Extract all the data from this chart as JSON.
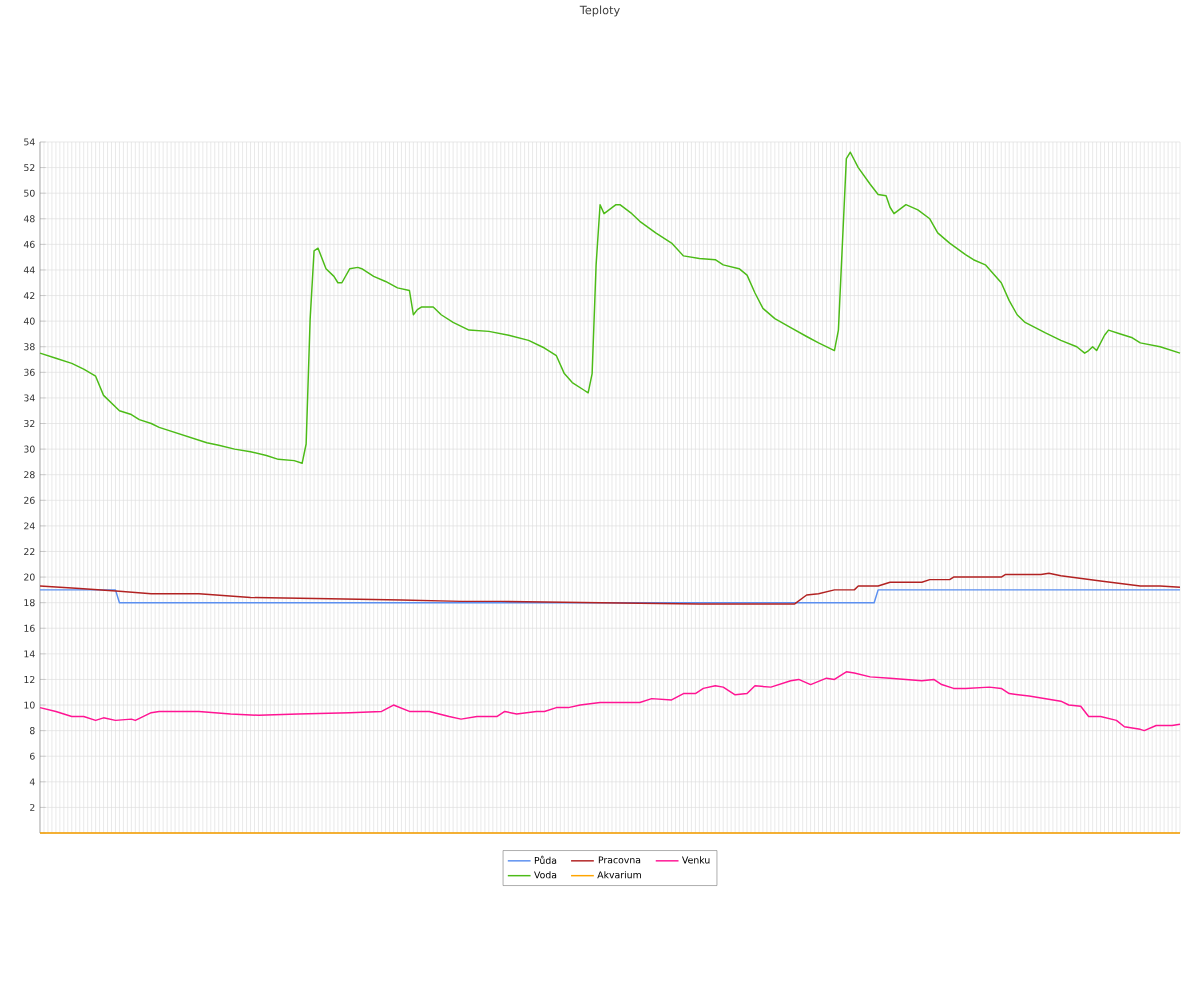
{
  "chart_data": {
    "type": "line",
    "title": "Teploty",
    "categories": [
      null,
      null,
      null,
      null,
      null,
      null,
      null,
      null,
      null,
      null,
      null,
      null,
      null,
      null,
      null,
      null,
      null,
      null,
      null,
      null,
      null,
      null,
      null,
      null,
      null,
      null,
      null,
      null,
      null,
      null,
      null,
      null,
      null,
      null,
      null,
      null,
      null,
      null,
      null,
      null,
      null,
      null,
      null,
      null,
      null,
      null,
      null,
      null,
      null,
      null,
      null,
      null,
      null,
      null,
      null,
      null,
      null,
      null,
      null,
      null,
      null,
      null,
      null,
      null,
      null,
      null,
      null,
      null,
      null,
      null,
      null,
      null,
      null,
      null,
      null,
      null,
      null,
      null,
      null,
      null,
      null,
      null,
      null,
      null,
      null,
      null,
      null,
      null,
      null,
      null,
      null,
      null,
      null,
      null,
      null,
      null,
      null,
      null,
      null,
      null,
      null,
      null,
      null,
      null,
      null,
      null,
      null,
      null,
      null,
      null,
      null,
      null,
      null,
      null,
      null,
      null,
      null,
      null,
      null,
      null,
      null,
      null,
      null,
      null,
      null,
      null,
      null,
      null,
      null,
      null,
      null,
      null,
      null,
      null,
      null,
      null,
      null,
      null,
      null,
      null,
      null,
      null,
      null,
      null,
      null,
      null,
      null,
      null,
      null,
      null,
      null,
      null,
      null,
      null,
      null,
      null,
      null,
      null,
      null,
      null,
      null,
      null,
      null,
      null,
      null,
      null,
      null,
      null,
      null,
      null,
      null,
      null,
      null,
      null,
      null,
      null,
      null,
      null,
      null,
      null,
      null,
      null,
      null,
      null,
      null,
      null,
      null,
      null,
      null,
      null,
      null,
      null,
      null,
      null,
      null,
      null,
      null,
      null,
      null,
      null,
      null,
      null,
      null,
      null,
      null,
      null,
      null,
      null,
      null,
      null,
      null,
      null,
      null,
      null,
      null,
      null,
      null,
      null,
      null,
      null,
      null,
      null,
      null,
      null,
      null,
      null,
      null,
      null,
      null,
      null,
      null,
      null,
      null,
      null,
      null,
      null,
      null,
      null,
      null,
      null,
      null,
      null,
      null,
      null,
      null,
      null,
      null,
      null,
      null,
      null,
      null,
      null,
      null,
      null,
      null,
      null,
      null,
      null,
      null,
      null,
      null,
      null,
      null,
      null,
      null,
      null,
      null,
      null,
      null,
      null,
      null,
      null,
      null,
      null,
      null,
      null,
      null,
      null,
      null,
      null,
      null,
      null,
      null,
      null,
      null,
      null,
      null,
      null
    ],
    "ylim": [
      0,
      54
    ],
    "yticks": [
      {
        "value": 0,
        "label": null
      },
      2,
      4,
      6,
      8,
      10,
      12,
      14,
      16,
      18,
      20,
      22,
      24,
      26,
      28,
      30,
      32,
      34,
      36,
      38,
      40,
      42,
      44,
      46,
      48,
      50,
      52,
      54
    ],
    "grid": true,
    "legend": "bottom",
    "marker": "none",
    "line_style": "solid",
    "series": [
      {
        "name": "Půda",
        "color": "#5b8ff0",
        "values": [
          19,
          null,
          null,
          null,
          null,
          null,
          null,
          null,
          null,
          null,
          null,
          null,
          null,
          null,
          null,
          null,
          null,
          null,
          null,
          19,
          18,
          null,
          null,
          null,
          null,
          null,
          null,
          null,
          null,
          null,
          null,
          null,
          null,
          null,
          null,
          null,
          null,
          null,
          null,
          null,
          null,
          null,
          null,
          null,
          null,
          null,
          null,
          null,
          null,
          null,
          null,
          null,
          null,
          null,
          null,
          null,
          null,
          null,
          null,
          null,
          null,
          null,
          null,
          null,
          null,
          null,
          null,
          null,
          null,
          null,
          null,
          null,
          null,
          null,
          null,
          null,
          null,
          null,
          null,
          null,
          null,
          null,
          null,
          null,
          null,
          null,
          null,
          null,
          null,
          null,
          null,
          null,
          null,
          null,
          null,
          null,
          null,
          null,
          null,
          null,
          null,
          null,
          null,
          null,
          null,
          null,
          null,
          null,
          null,
          null,
          null,
          null,
          null,
          null,
          null,
          null,
          null,
          null,
          null,
          null,
          null,
          null,
          null,
          null,
          null,
          null,
          null,
          null,
          null,
          null,
          null,
          null,
          null,
          null,
          null,
          null,
          null,
          null,
          null,
          null,
          null,
          null,
          null,
          null,
          null,
          null,
          null,
          null,
          null,
          null,
          null,
          null,
          null,
          null,
          null,
          null,
          null,
          null,
          null,
          null,
          null,
          null,
          null,
          null,
          null,
          null,
          null,
          null,
          null,
          null,
          null,
          null,
          null,
          null,
          null,
          null,
          null,
          null,
          null,
          null,
          null,
          null,
          null,
          null,
          null,
          null,
          null,
          null,
          null,
          null,
          null,
          null,
          null,
          null,
          null,
          null,
          null,
          null,
          null,
          null,
          null,
          null,
          null,
          null,
          null,
          null,
          null,
          null,
          null,
          null,
          18,
          19,
          null,
          null,
          null,
          null,
          null,
          null,
          null,
          null,
          null,
          null,
          null,
          null,
          null,
          null,
          null,
          null,
          null,
          null,
          null,
          null,
          null,
          null,
          null,
          null,
          null,
          null,
          null,
          null,
          null,
          null,
          null,
          null,
          null,
          null,
          null,
          null,
          null,
          null,
          null,
          null,
          null,
          null,
          null,
          null,
          null,
          null,
          null,
          null,
          null,
          null,
          null,
          null,
          null,
          null,
          null,
          null,
          null,
          null,
          null,
          null,
          null,
          null,
          null,
          null,
          null,
          null,
          null,
          null,
          null,
          null,
          null,
          null,
          null,
          null,
          null,
          19
        ]
      },
      {
        "name": "Pracovna",
        "color": "#b22222",
        "values": [
          19.3,
          null,
          null,
          null,
          null,
          19.2,
          null,
          null,
          null,
          null,
          19.1,
          null,
          null,
          null,
          null,
          null,
          null,
          null,
          null,
          null,
          18.9,
          null,
          null,
          null,
          null,
          null,
          null,
          null,
          18.7,
          null,
          null,
          null,
          null,
          null,
          null,
          null,
          null,
          null,
          null,
          null,
          18.7,
          null,
          null,
          null,
          null,
          null,
          null,
          null,
          null,
          null,
          null,
          null,
          null,
          18.4,
          null,
          null,
          null,
          null,
          null,
          null,
          null,
          null,
          null,
          null,
          null,
          null,
          null,
          null,
          null,
          null,
          null,
          null,
          null,
          18.3,
          null,
          null,
          null,
          null,
          null,
          null,
          null,
          null,
          null,
          null,
          null,
          null,
          null,
          null,
          null,
          null,
          null,
          18.2,
          null,
          null,
          null,
          null,
          null,
          null,
          null,
          null,
          null,
          null,
          null,
          null,
          null,
          null,
          18.1,
          null,
          null,
          null,
          null,
          null,
          null,
          null,
          null,
          null,
          18.1,
          null,
          null,
          null,
          null,
          null,
          null,
          null,
          null,
          null,
          null,
          null,
          null,
          null,
          null,
          null,
          null,
          null,
          null,
          null,
          null,
          null,
          null,
          null,
          null,
          18.0,
          null,
          null,
          null,
          null,
          null,
          null,
          null,
          null,
          null,
          null,
          null,
          null,
          null,
          null,
          null,
          null,
          null,
          null,
          null,
          null,
          null,
          null,
          null,
          null,
          17.9,
          null,
          null,
          null,
          null,
          null,
          null,
          null,
          null,
          null,
          null,
          null,
          null,
          null,
          null,
          null,
          null,
          null,
          null,
          null,
          null,
          null,
          null,
          null,
          17.9,
          null,
          null,
          18.6,
          null,
          null,
          18.7,
          null,
          null,
          null,
          19.0,
          null,
          null,
          null,
          null,
          19.0,
          19.3,
          null,
          null,
          null,
          null,
          19.3,
          null,
          null,
          19.6,
          null,
          null,
          null,
          null,
          null,
          null,
          null,
          19.6,
          null,
          19.8,
          null,
          null,
          null,
          null,
          19.8,
          20.0,
          null,
          null,
          null,
          null,
          null,
          null,
          20.0,
          null,
          null,
          null,
          null,
          20.0,
          20.2,
          null,
          null,
          null,
          null,
          null,
          null,
          null,
          null,
          20.2,
          null,
          20.3,
          null,
          null,
          20.1,
          null,
          null,
          null,
          null,
          19.9,
          null,
          null,
          null,
          null,
          19.7,
          null,
          null,
          null,
          null,
          19.5,
          null,
          null,
          null,
          null,
          19.3,
          null,
          null,
          null,
          null,
          19.3,
          null,
          null,
          null,
          null,
          19.2
        ]
      },
      {
        "name": "Venku",
        "color": "#ff1493",
        "values": [
          9.8,
          null,
          null,
          null,
          9.5,
          null,
          null,
          null,
          9.1,
          null,
          null,
          9.1,
          null,
          null,
          8.8,
          null,
          9.0,
          null,
          null,
          8.8,
          null,
          null,
          null,
          8.9,
          8.8,
          null,
          null,
          null,
          9.4,
          null,
          9.5,
          null,
          null,
          null,
          null,
          null,
          null,
          null,
          null,
          null,
          9.5,
          null,
          null,
          null,
          null,
          null,
          null,
          null,
          9.3,
          null,
          null,
          null,
          null,
          null,
          null,
          9.2,
          null,
          null,
          null,
          null,
          null,
          null,
          null,
          null,
          null,
          9.3,
          null,
          null,
          null,
          null,
          null,
          null,
          null,
          null,
          null,
          null,
          null,
          null,
          9.4,
          null,
          null,
          null,
          null,
          null,
          null,
          null,
          9.5,
          null,
          null,
          10.0,
          null,
          null,
          null,
          9.5,
          null,
          null,
          null,
          null,
          9.5,
          null,
          null,
          null,
          null,
          9.1,
          null,
          null,
          8.9,
          null,
          null,
          null,
          9.1,
          null,
          null,
          null,
          null,
          9.1,
          null,
          9.5,
          null,
          null,
          9.3,
          null,
          null,
          null,
          null,
          9.5,
          null,
          9.5,
          null,
          null,
          9.8,
          null,
          null,
          9.8,
          null,
          null,
          10.0,
          null,
          null,
          null,
          null,
          10.2,
          null,
          null,
          null,
          null,
          null,
          null,
          null,
          null,
          null,
          10.2,
          null,
          null,
          10.5,
          null,
          null,
          null,
          null,
          10.4,
          null,
          null,
          10.9,
          null,
          null,
          10.9,
          null,
          11.3,
          null,
          null,
          11.5,
          null,
          11.4,
          null,
          null,
          10.8,
          null,
          null,
          10.9,
          null,
          11.5,
          null,
          null,
          null,
          11.4,
          null,
          null,
          null,
          null,
          11.9,
          null,
          12.0,
          null,
          null,
          11.6,
          null,
          null,
          null,
          12.1,
          null,
          12.0,
          null,
          null,
          12.6,
          null,
          12.5,
          null,
          null,
          null,
          12.2,
          null,
          null,
          null,
          null,
          12.1,
          null,
          null,
          null,
          12.0,
          null,
          null,
          null,
          11.9,
          null,
          null,
          12.0,
          null,
          11.6,
          null,
          null,
          11.3,
          null,
          null,
          11.3,
          null,
          null,
          null,
          null,
          null,
          11.4,
          null,
          null,
          11.3,
          null,
          10.9,
          null,
          null,
          null,
          null,
          10.7,
          null,
          null,
          null,
          null,
          null,
          null,
          null,
          10.3,
          null,
          10.0,
          null,
          null,
          9.9,
          null,
          9.1,
          null,
          null,
          9.1,
          null,
          null,
          null,
          8.8,
          null,
          8.3,
          null,
          null,
          null,
          8.1,
          8.0,
          null,
          null,
          8.4,
          null,
          null,
          null,
          8.4,
          null,
          8.5
        ]
      },
      {
        "name": "Voda",
        "color": "#4cbb17",
        "values": [
          37.5,
          null,
          null,
          null,
          37.1,
          null,
          null,
          null,
          36.7,
          null,
          null,
          36.25,
          null,
          null,
          35.7,
          null,
          34.2,
          null,
          33.6,
          null,
          33.0,
          null,
          null,
          32.7,
          null,
          32.3,
          null,
          null,
          32.0,
          null,
          31.7,
          null,
          null,
          null,
          31.3,
          null,
          null,
          null,
          30.9,
          null,
          null,
          null,
          30.5,
          null,
          null,
          30.3,
          null,
          null,
          null,
          30.0,
          null,
          null,
          null,
          29.8,
          null,
          null,
          null,
          29.5,
          null,
          null,
          29.2,
          null,
          null,
          null,
          29.1,
          null,
          28.9,
          30.4,
          40.1,
          45.5,
          45.7,
          null,
          44.1,
          null,
          43.5,
          43.0,
          43.0,
          null,
          44.1,
          null,
          44.2,
          44.1,
          null,
          null,
          43.5,
          null,
          null,
          43.1,
          null,
          null,
          42.6,
          null,
          null,
          42.4,
          40.5,
          40.9,
          41.1,
          null,
          null,
          41.1,
          null,
          40.5,
          null,
          null,
          39.9,
          null,
          null,
          null,
          39.3,
          null,
          null,
          null,
          null,
          39.2,
          null,
          null,
          null,
          null,
          38.9,
          null,
          null,
          null,
          null,
          38.5,
          null,
          null,
          null,
          37.9,
          null,
          null,
          37.3,
          null,
          35.9,
          null,
          35.2,
          null,
          null,
          34.6,
          34.4,
          35.9,
          44.4,
          49.1,
          48.4,
          null,
          null,
          49.1,
          49.1,
          null,
          null,
          48.4,
          null,
          47.8,
          null,
          null,
          null,
          46.9,
          null,
          null,
          null,
          46.1,
          null,
          null,
          45.1,
          null,
          null,
          null,
          44.9,
          null,
          null,
          null,
          44.8,
          null,
          44.4,
          null,
          null,
          null,
          44.1,
          null,
          43.6,
          null,
          42.2,
          null,
          41.0,
          null,
          null,
          40.2,
          null,
          null,
          null,
          39.5,
          null,
          null,
          null,
          38.8,
          null,
          null,
          38.3,
          null,
          null,
          null,
          37.7,
          39.3,
          null,
          52.7,
          53.2,
          null,
          52.0,
          null,
          null,
          50.7,
          null,
          49.9,
          null,
          49.8,
          48.9,
          48.4,
          null,
          null,
          49.1,
          null,
          null,
          48.7,
          null,
          null,
          48.0,
          null,
          46.9,
          null,
          null,
          46.1,
          null,
          null,
          null,
          45.2,
          null,
          44.8,
          null,
          null,
          44.4,
          null,
          43.7,
          null,
          43.0,
          null,
          41.6,
          null,
          40.5,
          null,
          39.9,
          null,
          null,
          null,
          null,
          39.1,
          null,
          null,
          null,
          38.5,
          null,
          null,
          null,
          38.0,
          null,
          37.5,
          37.7,
          38.0,
          37.7,
          null,
          38.9,
          39.3,
          null,
          null,
          39.0,
          null,
          null,
          38.7,
          null,
          38.3,
          null,
          null,
          null,
          null,
          38.0,
          null,
          null,
          null,
          null,
          37.5
        ]
      },
      {
        "name": "Akvarium",
        "color": "#ffa500",
        "values": [
          0,
          null,
          null,
          null,
          null,
          null,
          null,
          null,
          null,
          null,
          null,
          null,
          null,
          null,
          null,
          null,
          null,
          null,
          null,
          null,
          null,
          null,
          null,
          null,
          null,
          null,
          null,
          null,
          null,
          null,
          null,
          null,
          null,
          null,
          null,
          null,
          null,
          null,
          null,
          null,
          null,
          null,
          null,
          null,
          null,
          null,
          null,
          null,
          null,
          null,
          null,
          null,
          null,
          null,
          null,
          null,
          null,
          null,
          null,
          null,
          null,
          null,
          null,
          null,
          null,
          null,
          null,
          null,
          null,
          null,
          null,
          null,
          null,
          null,
          null,
          null,
          null,
          null,
          null,
          null,
          null,
          null,
          null,
          null,
          null,
          null,
          null,
          null,
          null,
          null,
          null,
          null,
          null,
          null,
          null,
          null,
          null,
          null,
          null,
          null,
          null,
          null,
          null,
          null,
          null,
          null,
          null,
          null,
          null,
          null,
          null,
          null,
          null,
          null,
          null,
          null,
          null,
          null,
          null,
          null,
          null,
          null,
          null,
          null,
          null,
          null,
          null,
          null,
          null,
          null,
          null,
          null,
          null,
          null,
          null,
          null,
          null,
          null,
          null,
          null,
          null,
          null,
          null,
          null,
          null,
          null,
          null,
          null,
          null,
          null,
          null,
          null,
          null,
          null,
          null,
          null,
          null,
          null,
          null,
          null,
          null,
          null,
          null,
          null,
          null,
          null,
          null,
          null,
          null,
          null,
          null,
          null,
          null,
          null,
          null,
          null,
          null,
          null,
          null,
          null,
          null,
          null,
          null,
          null,
          null,
          null,
          null,
          null,
          null,
          null,
          null,
          null,
          null,
          null,
          null,
          null,
          null,
          null,
          null,
          null,
          null,
          null,
          null,
          null,
          null,
          null,
          null,
          null,
          null,
          null,
          null,
          null,
          null,
          null,
          null,
          null,
          null,
          null,
          null,
          null,
          null,
          null,
          null,
          null,
          null,
          null,
          null,
          null,
          null,
          null,
          null,
          null,
          null,
          null,
          null,
          null,
          null,
          null,
          null,
          null,
          null,
          null,
          null,
          null,
          null,
          null,
          null,
          null,
          null,
          null,
          null,
          null,
          null,
          null,
          null,
          null,
          null,
          null,
          null,
          null,
          null,
          null,
          null,
          null,
          null,
          null,
          null,
          null,
          null,
          null,
          null,
          null,
          null,
          null,
          null,
          null,
          null,
          null,
          null,
          null,
          null,
          null,
          null,
          null,
          null,
          null,
          null,
          0
        ]
      }
    ]
  }
}
